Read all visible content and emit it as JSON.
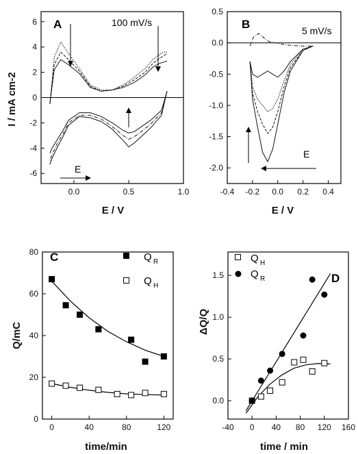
{
  "chart_data": [
    {
      "panel": "A",
      "type": "line",
      "annotation": "100 mV/s",
      "arrow_label": "E",
      "xlabel": "E / V",
      "ylabel": "I / mA cm-2",
      "xlim": [
        -0.3,
        1.0
      ],
      "ylim": [
        -6.8,
        6.8
      ],
      "xticks": [
        0.0,
        0.5,
        1.0
      ],
      "xtick_labels": [
        "0.0",
        "0.5",
        "1.0"
      ],
      "yticks": [
        -6,
        -4,
        -2,
        0,
        2,
        4,
        6
      ],
      "series": [
        {
          "x": [
            -0.22,
            -0.18,
            -0.12,
            -0.05,
            0.05,
            0.15,
            0.25,
            0.35,
            0.45,
            0.55,
            0.65,
            0.72,
            0.78,
            0.82,
            0.85
          ],
          "y": [
            -0.5,
            2.2,
            3.0,
            2.6,
            1.9,
            0.8,
            0.5,
            0.6,
            0.8,
            1.2,
            1.8,
            2.4,
            2.7,
            2.8,
            2.9
          ]
        },
        {
          "x": [
            -0.22,
            -0.18,
            -0.12,
            -0.05,
            0.05,
            0.15,
            0.25,
            0.35,
            0.45,
            0.55,
            0.65,
            0.72,
            0.78,
            0.82,
            0.85
          ],
          "y": [
            -0.5,
            2.6,
            3.6,
            3.0,
            2.1,
            0.9,
            0.5,
            0.6,
            0.9,
            1.4,
            2.0,
            2.7,
            3.1,
            3.3,
            3.5
          ]
        },
        {
          "x": [
            -0.22,
            -0.18,
            -0.12,
            -0.05,
            0.05,
            0.15,
            0.25,
            0.35,
            0.45,
            0.55,
            0.65,
            0.72,
            0.78,
            0.82,
            0.85
          ],
          "y": [
            -0.5,
            3.2,
            4.4,
            3.5,
            2.3,
            1.0,
            0.6,
            0.6,
            1.0,
            1.6,
            2.3,
            3.0,
            3.4,
            3.6,
            3.6
          ]
        },
        {
          "x": [
            0.85,
            0.8,
            0.7,
            0.6,
            0.55,
            0.5,
            0.45,
            0.35,
            0.25,
            0.15,
            0.05,
            -0.05,
            -0.1,
            -0.15,
            -0.2,
            -0.22
          ],
          "y": [
            0.5,
            -1.0,
            -1.8,
            -2.4,
            -2.7,
            -2.8,
            -2.6,
            -2.0,
            -1.5,
            -1.2,
            -1.2,
            -1.8,
            -2.6,
            -3.3,
            -4.0,
            -4.4
          ]
        },
        {
          "x": [
            0.85,
            0.8,
            0.7,
            0.6,
            0.55,
            0.5,
            0.45,
            0.35,
            0.25,
            0.15,
            0.05,
            -0.05,
            -0.1,
            -0.15,
            -0.2,
            -0.22
          ],
          "y": [
            0.5,
            -1.2,
            -2.1,
            -2.8,
            -3.1,
            -3.3,
            -3.0,
            -2.3,
            -1.7,
            -1.4,
            -1.4,
            -2.0,
            -2.9,
            -3.6,
            -4.5,
            -5.0
          ]
        },
        {
          "x": [
            0.85,
            0.8,
            0.7,
            0.6,
            0.55,
            0.5,
            0.45,
            0.35,
            0.25,
            0.15,
            0.05,
            -0.05,
            -0.1,
            -0.15,
            -0.2,
            -0.22
          ],
          "y": [
            0.5,
            -1.4,
            -2.4,
            -3.2,
            -3.6,
            -3.9,
            -3.4,
            -2.5,
            -1.9,
            -1.6,
            -1.5,
            -2.2,
            -3.1,
            -3.9,
            -4.8,
            -5.3
          ]
        }
      ]
    },
    {
      "panel": "B",
      "type": "line",
      "annotation": "5 mV/s",
      "arrow_label": "E",
      "xlabel": "E / V",
      "ylabel": "",
      "xlim": [
        -0.4,
        0.5
      ],
      "ylim": [
        -2.25,
        0.5
      ],
      "xticks": [
        -0.4,
        -0.2,
        0.0,
        0.2,
        0.4
      ],
      "xtick_labels": [
        "-0.4",
        "-0.2",
        "0.0",
        "0.2",
        "0.4"
      ],
      "yticks": [
        -2.0,
        -1.5,
        -1.0,
        -0.5,
        0.0,
        0.5
      ],
      "ytick_labels": [
        "-2.0",
        "-1.5",
        "-1.0",
        "-0.5",
        "0.0",
        "0.5"
      ],
      "series": [
        {
          "x": [
            -0.22,
            -0.2,
            -0.16,
            -0.12,
            -0.08,
            -0.04,
            0.0,
            0.05,
            0.1,
            0.2,
            0.28
          ],
          "y": [
            -0.3,
            -0.9,
            -1.35,
            -1.75,
            -1.9,
            -1.7,
            -1.3,
            -0.8,
            -0.45,
            -0.12,
            -0.05
          ]
        },
        {
          "x": [
            -0.22,
            -0.2,
            -0.16,
            -0.12,
            -0.08,
            -0.04,
            0.0,
            0.05,
            0.1,
            0.2,
            0.28
          ],
          "y": [
            -0.3,
            -0.8,
            -1.1,
            -1.3,
            -1.45,
            -1.35,
            -1.1,
            -0.7,
            -0.4,
            -0.12,
            -0.05
          ]
        },
        {
          "x": [
            -0.22,
            -0.2,
            -0.16,
            -0.12,
            -0.08,
            -0.04,
            0.0,
            0.05,
            0.1,
            0.2,
            0.28
          ],
          "y": [
            -0.3,
            -0.7,
            -0.9,
            -1.0,
            -1.1,
            -1.05,
            -0.9,
            -0.6,
            -0.35,
            -0.1,
            -0.05
          ]
        },
        {
          "x": [
            -0.22,
            -0.2,
            -0.16,
            -0.12,
            -0.08,
            -0.04,
            0.0,
            0.05,
            0.1,
            0.2,
            0.28
          ],
          "y": [
            -0.3,
            -0.5,
            -0.55,
            -0.5,
            -0.45,
            -0.5,
            -0.55,
            -0.45,
            -0.3,
            -0.1,
            -0.05
          ]
        },
        {
          "x": [
            -0.22,
            -0.19,
            -0.15,
            -0.11,
            -0.07,
            -0.02,
            0.04,
            0.1,
            0.2,
            0.28
          ],
          "y": [
            -0.05,
            0.1,
            0.15,
            0.08,
            0.02,
            0.0,
            -0.02,
            -0.04,
            -0.05,
            -0.05
          ]
        }
      ]
    },
    {
      "panel": "C",
      "type": "scatter",
      "xlabel": "time/min",
      "ylabel": "Q/mC",
      "xlim": [
        -10,
        130
      ],
      "ylim": [
        0,
        80
      ],
      "xticks": [
        0,
        40,
        80,
        120
      ],
      "yticks": [
        0,
        20,
        40,
        60,
        80
      ],
      "series": [
        {
          "name": "QR",
          "name_main": "Q",
          "name_sub": "R",
          "marker": "filled-square",
          "x": [
            0,
            15,
            30,
            50,
            85,
            100,
            120
          ],
          "y": [
            67,
            54.5,
            50,
            43,
            38,
            27.5,
            30
          ]
        },
        {
          "name": "QH",
          "name_main": "Q",
          "name_sub": "H",
          "marker": "open-square",
          "x": [
            0,
            15,
            30,
            50,
            70,
            85,
            100,
            120
          ],
          "y": [
            17,
            16,
            15,
            14,
            12,
            11.5,
            12.5,
            12
          ]
        }
      ],
      "fits": [
        {
          "x": [
            0,
            20,
            40,
            60,
            80,
            100,
            120
          ],
          "y": [
            66,
            56.5,
            48.5,
            42,
            37,
            33,
            30
          ]
        },
        {
          "x": [
            0,
            20,
            40,
            60,
            80,
            100,
            120
          ],
          "y": [
            17,
            15.2,
            13.8,
            12.8,
            12.1,
            11.7,
            11.5
          ]
        }
      ]
    },
    {
      "panel": "D",
      "type": "scatter",
      "xlabel": "time / min",
      "ylabel": "ΔQ/Q",
      "xlim": [
        -40,
        160
      ],
      "ylim": [
        -0.22,
        1.78
      ],
      "xticks": [
        -40,
        0,
        40,
        80,
        120,
        160
      ],
      "yticks": [
        0.0,
        0.5,
        1.0,
        1.5
      ],
      "ytick_labels": [
        "0.0",
        "0.5",
        "1.0",
        "1.5"
      ],
      "series": [
        {
          "name": "QH",
          "name_main": "Q",
          "name_sub": "H",
          "marker": "open-square",
          "x": [
            0,
            15,
            30,
            50,
            70,
            85,
            100,
            120
          ],
          "y": [
            0,
            0.05,
            0.12,
            0.22,
            0.46,
            0.49,
            0.35,
            0.45
          ]
        },
        {
          "name": "QR",
          "name_main": "Q",
          "name_sub": "R",
          "marker": "filled-circle",
          "x": [
            0,
            15,
            30,
            50,
            85,
            100,
            120
          ],
          "y": [
            0,
            0.24,
            0.36,
            0.56,
            0.78,
            1.45,
            1.27
          ]
        }
      ],
      "fits": [
        {
          "x": [
            -10,
            130
          ],
          "y": [
            -0.12,
            1.52
          ]
        },
        {
          "x": [
            -10,
            10,
            30,
            50,
            70,
            90,
            110,
            130
          ],
          "y": [
            -0.15,
            0.05,
            0.2,
            0.31,
            0.39,
            0.43,
            0.445,
            0.44
          ]
        }
      ]
    }
  ]
}
